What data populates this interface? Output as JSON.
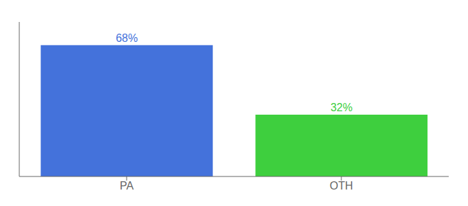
{
  "chart_data": {
    "type": "bar",
    "categories": [
      "PA",
      "OTH"
    ],
    "values": [
      68,
      32
    ],
    "value_labels": [
      "68%",
      "32%"
    ],
    "data_labels": true,
    "colors": [
      "#4472db",
      "#3ecf3e"
    ],
    "ylim": [
      0,
      80
    ],
    "tick_labels": "x",
    "grid": false
  }
}
